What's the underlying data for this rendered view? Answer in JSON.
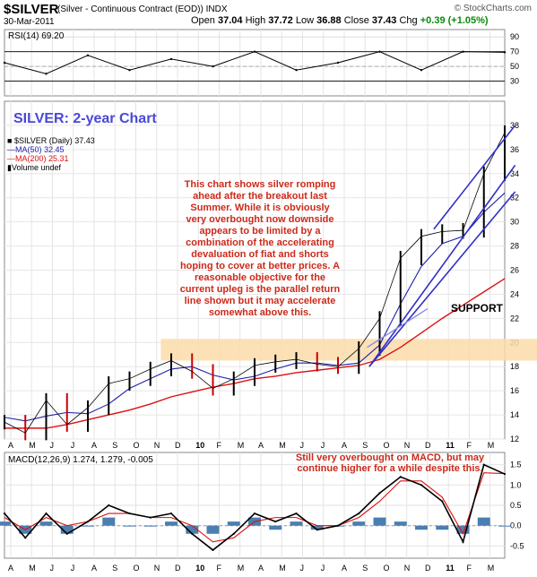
{
  "header": {
    "symbol": "$SILVER",
    "subtitle": "(Silver - Continuous Contract (EOD))  INDX",
    "brand": "© StockCharts.com",
    "date": "30-Mar-2011",
    "open_label": "Open",
    "open": "37.04",
    "high_label": "High",
    "high": "37.72",
    "low_label": "Low",
    "low": "36.88",
    "close_label": "Close",
    "close": "37.43",
    "chg_label": "Chg",
    "chg": "+0.39 (+1.05%)"
  },
  "colors": {
    "price_up": "#000000",
    "price_down": "#cc0000",
    "ma50": "#2020aa",
    "ma200": "#dd1010",
    "channel": "#3030c8",
    "support_band": "#fbdcaa",
    "annotation": "#cc2a1a",
    "macd_hist": "#4a7fb0",
    "rsi_fill": "#4a7a4a"
  },
  "title": "SILVER: 2-year Chart",
  "annotation": "This chart shows silver romping ahead after the breakout last Summer. While it is obviously very overbought now downside appears to be limited by a combination of the accelerating devaluation of fiat and shorts hoping to cover at better prices. A reasonable objective for the current upleg is the parallel return line shown but it may accelerate somewhat above this.",
  "legend": {
    "price": "$SILVER (Daily) 37.43",
    "ma50": "MA(50) 32.45",
    "ma200": "MA(200) 25.31",
    "volume": "Volume undef"
  },
  "support_label": "SUPPORT",
  "macd_note": "Still very overbought on MACD, but may continue higher for a while despite this.",
  "chart_data": [
    {
      "type": "line",
      "name": "RSI",
      "label": "RSI(14) 69.20",
      "ylim": [
        10,
        100
      ],
      "yticks": [
        90,
        70,
        50,
        30
      ],
      "reference_lines": [
        70,
        50,
        30
      ],
      "x": [
        0,
        2,
        4,
        6,
        8,
        10,
        12,
        14,
        16,
        18,
        20,
        22,
        24
      ],
      "values": [
        55,
        40,
        65,
        45,
        60,
        50,
        70,
        45,
        55,
        70,
        45,
        70,
        69.2
      ]
    },
    {
      "type": "line",
      "name": "price",
      "title": "SILVER: 2-year Chart",
      "ylim": [
        12,
        40
      ],
      "yticks": [
        12,
        14,
        16,
        18,
        20,
        22,
        24,
        26,
        28,
        30,
        32,
        34,
        36,
        38
      ],
      "x_months": [
        "A",
        "M",
        "J",
        "J",
        "A",
        "S",
        "O",
        "N",
        "D",
        "10",
        "F",
        "M",
        "A",
        "M",
        "J",
        "J",
        "A",
        "S",
        "O",
        "N",
        "D",
        "11",
        "F",
        "M"
      ],
      "x": [
        0,
        1,
        2,
        3,
        4,
        5,
        6,
        7,
        8,
        9,
        10,
        11,
        12,
        13,
        14,
        15,
        16,
        17,
        18,
        19,
        20,
        21,
        22,
        23,
        24
      ],
      "close": [
        13.4,
        12.5,
        15.2,
        13.2,
        14.6,
        16.6,
        17.0,
        17.8,
        18.5,
        17.6,
        16.2,
        17.0,
        18.1,
        18.4,
        18.6,
        18.2,
        18.0,
        19.5,
        22.0,
        27.0,
        28.8,
        29.2,
        29.3,
        34.0,
        37.4
      ],
      "ma50": [
        13.8,
        13.5,
        13.9,
        14.2,
        14.1,
        14.9,
        16.2,
        17.0,
        17.8,
        18.0,
        17.3,
        16.9,
        17.2,
        17.8,
        18.3,
        18.3,
        18.1,
        18.3,
        19.8,
        23.2,
        26.3,
        28.2,
        28.8,
        30.8,
        32.4
      ],
      "ma200": [
        12.9,
        12.9,
        12.9,
        13.2,
        13.6,
        14.0,
        14.4,
        14.9,
        15.5,
        15.9,
        16.3,
        16.6,
        17.0,
        17.2,
        17.5,
        17.7,
        17.9,
        18.1,
        18.6,
        19.6,
        20.8,
        22.0,
        23.1,
        24.2,
        25.3
      ],
      "support_zone": [
        18.5,
        20.3
      ],
      "channel_lower": [
        [
          17.5,
          18.0
        ],
        [
          24.5,
          32.5
        ]
      ],
      "channel_middle": [
        [
          17.5,
          18.0
        ],
        [
          24.5,
          34.7
        ]
      ],
      "channel_upper": [
        [
          20.6,
          29.4
        ],
        [
          24.5,
          38.0
        ]
      ],
      "short_trend": [
        [
          17.4,
          19.6
        ],
        [
          20.3,
          22.8
        ]
      ]
    },
    {
      "type": "line",
      "name": "MACD",
      "label": "MACD(12,26,9) 1.274, 1.279, -0.005",
      "ylim": [
        -0.8,
        1.8
      ],
      "yticks": [
        1.5,
        1.0,
        0.5,
        0.0,
        -0.5
      ],
      "x": [
        0,
        1,
        2,
        3,
        4,
        5,
        6,
        7,
        8,
        9,
        10,
        11,
        12,
        13,
        14,
        15,
        16,
        17,
        18,
        19,
        20,
        21,
        22,
        23,
        24
      ],
      "macd": [
        0.3,
        -0.3,
        0.3,
        -0.2,
        0.1,
        0.5,
        0.3,
        0.2,
        0.3,
        -0.2,
        -0.6,
        -0.2,
        0.3,
        0.1,
        0.3,
        -0.1,
        0.0,
        0.3,
        0.8,
        1.2,
        1.0,
        0.6,
        -0.4,
        1.5,
        1.27
      ],
      "signal": [
        0.2,
        -0.1,
        0.2,
        0.0,
        0.1,
        0.3,
        0.3,
        0.2,
        0.2,
        0.0,
        -0.4,
        -0.3,
        0.1,
        0.2,
        0.2,
        0.0,
        0.0,
        0.2,
        0.6,
        1.1,
        1.1,
        0.7,
        -0.2,
        1.3,
        1.28
      ],
      "hist": [
        0.1,
        -0.2,
        0.1,
        -0.2,
        0.0,
        0.2,
        0.0,
        0.0,
        0.1,
        -0.2,
        -0.2,
        0.1,
        0.2,
        -0.1,
        0.1,
        -0.1,
        0.0,
        0.1,
        0.2,
        0.1,
        -0.1,
        -0.1,
        -0.2,
        0.2,
        -0.005
      ]
    }
  ]
}
